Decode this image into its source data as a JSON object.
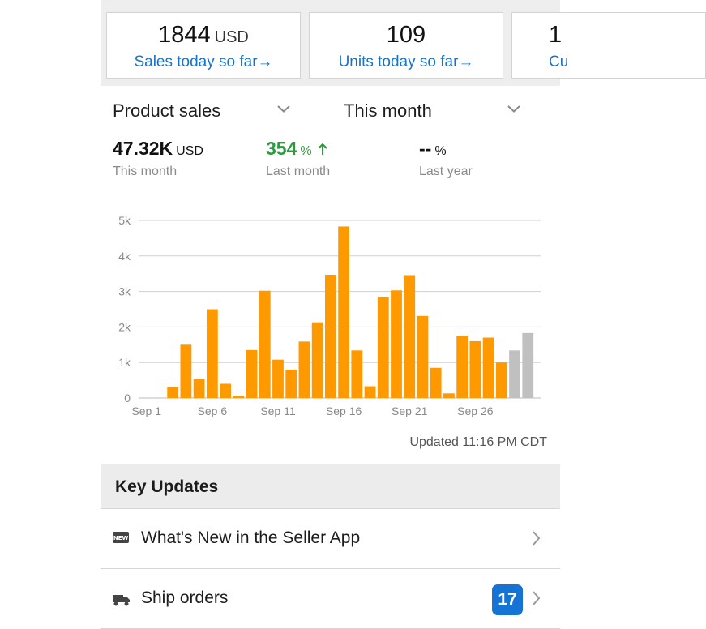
{
  "metric_cards": [
    {
      "value": "1844",
      "unit": "USD",
      "link": "Sales today so far→"
    },
    {
      "value": "109",
      "unit": "",
      "link": "Units today so far→"
    },
    {
      "value": "1",
      "unit": "",
      "link": "Cu"
    }
  ],
  "selectors": {
    "metric": "Product sales",
    "period": "This month"
  },
  "stats": [
    {
      "value": "47.32K",
      "unit": "USD",
      "label": "This month",
      "arrow": ""
    },
    {
      "value": "354",
      "unit": "%",
      "label": "Last month",
      "arrow": "up"
    },
    {
      "value": "--",
      "unit": "%",
      "label": "Last year",
      "arrow": ""
    }
  ],
  "chart_data": {
    "type": "bar",
    "title": "",
    "xlabel": "",
    "ylabel": "",
    "ylim": [
      0,
      5000
    ],
    "y_ticks": [
      "0",
      "1k",
      "2k",
      "3k",
      "4k",
      "5k"
    ],
    "x_tick_labels": [
      {
        "day": 1,
        "label": "Sep 1"
      },
      {
        "day": 6,
        "label": "Sep 6"
      },
      {
        "day": 11,
        "label": "Sep 11"
      },
      {
        "day": 16,
        "label": "Sep 16"
      },
      {
        "day": 21,
        "label": "Sep 21"
      },
      {
        "day": 26,
        "label": "Sep 26"
      }
    ],
    "grid": true,
    "days": [
      1,
      2,
      3,
      4,
      5,
      6,
      7,
      8,
      9,
      10,
      11,
      12,
      13,
      14,
      15,
      16,
      17,
      18,
      19,
      20,
      21,
      22,
      23,
      24,
      25,
      26,
      27,
      28,
      29,
      30
    ],
    "values": [
      0,
      0,
      300,
      1500,
      530,
      2500,
      400,
      60,
      1350,
      3020,
      1080,
      800,
      1590,
      2130,
      3470,
      4830,
      1340,
      330,
      2840,
      3030,
      3460,
      2310,
      850,
      130,
      1750,
      1600,
      1700,
      1000,
      1340,
      1830
    ],
    "colors": [
      "#ff9900",
      "#ff9900",
      "#ff9900",
      "#ff9900",
      "#ff9900",
      "#ff9900",
      "#ff9900",
      "#ff9900",
      "#ff9900",
      "#ff9900",
      "#ff9900",
      "#ff9900",
      "#ff9900",
      "#ff9900",
      "#ff9900",
      "#ff9900",
      "#ff9900",
      "#ff9900",
      "#ff9900",
      "#ff9900",
      "#ff9900",
      "#ff9900",
      "#ff9900",
      "#ff9900",
      "#ff9900",
      "#ff9900",
      "#ff9900",
      "#ff9900",
      "#c0c0c0",
      "#c0c0c0"
    ]
  },
  "updated": "Updated 11:16 PM CDT",
  "key_updates": {
    "title": "Key Updates",
    "rows": [
      {
        "label": "What's New in the Seller App",
        "icon": "new-badge-icon",
        "badge": ""
      },
      {
        "label": "Ship orders",
        "icon": "truck-icon",
        "badge": "17"
      }
    ]
  }
}
